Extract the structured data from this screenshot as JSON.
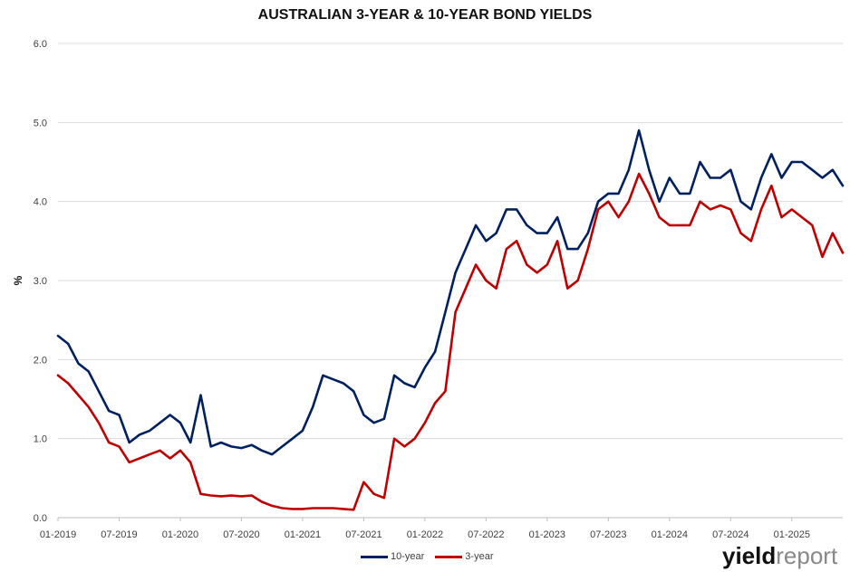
{
  "chart_data": {
    "type": "line",
    "title": "AUSTRALIAN 3-YEAR & 10-YEAR BOND YIELDS",
    "ylabel": "%",
    "ylim": [
      0,
      6
    ],
    "yticks": [
      "0.0",
      "1.0",
      "2.0",
      "3.0",
      "4.0",
      "5.0",
      "6.0"
    ],
    "xlim": [
      "2019-01",
      "2025-06"
    ],
    "xticks": [
      "01-2019",
      "07-2019",
      "01-2020",
      "07-2020",
      "01-2021",
      "07-2021",
      "01-2022",
      "07-2022",
      "01-2023",
      "07-2023",
      "01-2024",
      "07-2024",
      "01-2025"
    ],
    "grid": "horizontal",
    "legend_position": "bottom",
    "series": [
      {
        "name": "10-year",
        "color": "#002060",
        "x": [
          "2019-01",
          "2019-02",
          "2019-03",
          "2019-04",
          "2019-05",
          "2019-06",
          "2019-07",
          "2019-08",
          "2019-09",
          "2019-10",
          "2019-11",
          "2019-12",
          "2020-01",
          "2020-02",
          "2020-03",
          "2020-04",
          "2020-05",
          "2020-06",
          "2020-07",
          "2020-08",
          "2020-09",
          "2020-10",
          "2020-11",
          "2020-12",
          "2021-01",
          "2021-02",
          "2021-03",
          "2021-04",
          "2021-05",
          "2021-06",
          "2021-07",
          "2021-08",
          "2021-09",
          "2021-10",
          "2021-11",
          "2021-12",
          "2022-01",
          "2022-02",
          "2022-03",
          "2022-04",
          "2022-05",
          "2022-06",
          "2022-07",
          "2022-08",
          "2022-09",
          "2022-10",
          "2022-11",
          "2022-12",
          "2023-01",
          "2023-02",
          "2023-03",
          "2023-04",
          "2023-05",
          "2023-06",
          "2023-07",
          "2023-08",
          "2023-09",
          "2023-10",
          "2023-11",
          "2023-12",
          "2024-01",
          "2024-02",
          "2024-03",
          "2024-04",
          "2024-05",
          "2024-06",
          "2024-07",
          "2024-08",
          "2024-09",
          "2024-10",
          "2024-11",
          "2024-12",
          "2025-01",
          "2025-02",
          "2025-03",
          "2025-04",
          "2025-05",
          "2025-06"
        ],
        "y": [
          2.3,
          2.2,
          1.95,
          1.85,
          1.6,
          1.35,
          1.3,
          0.95,
          1.05,
          1.1,
          1.2,
          1.3,
          1.2,
          0.95,
          1.55,
          0.9,
          0.95,
          0.9,
          0.88,
          0.92,
          0.85,
          0.8,
          0.9,
          1.0,
          1.1,
          1.4,
          1.8,
          1.75,
          1.7,
          1.6,
          1.3,
          1.2,
          1.25,
          1.8,
          1.7,
          1.65,
          1.9,
          2.1,
          2.6,
          3.1,
          3.4,
          3.7,
          3.5,
          3.6,
          3.9,
          3.9,
          3.7,
          3.6,
          3.6,
          3.8,
          3.4,
          3.4,
          3.6,
          4.0,
          4.1,
          4.1,
          4.4,
          4.9,
          4.4,
          4.0,
          4.3,
          4.1,
          4.1,
          4.5,
          4.3,
          4.3,
          4.4,
          4.0,
          3.9,
          4.3,
          4.6,
          4.3,
          4.5,
          4.5,
          4.4,
          4.3,
          4.4,
          4.2
        ]
      },
      {
        "name": "3-year",
        "color": "#c00000",
        "x": [
          "2019-01",
          "2019-02",
          "2019-03",
          "2019-04",
          "2019-05",
          "2019-06",
          "2019-07",
          "2019-08",
          "2019-09",
          "2019-10",
          "2019-11",
          "2019-12",
          "2020-01",
          "2020-02",
          "2020-03",
          "2020-04",
          "2020-05",
          "2020-06",
          "2020-07",
          "2020-08",
          "2020-09",
          "2020-10",
          "2020-11",
          "2020-12",
          "2021-01",
          "2021-02",
          "2021-03",
          "2021-04",
          "2021-05",
          "2021-06",
          "2021-07",
          "2021-08",
          "2021-09",
          "2021-10",
          "2021-11",
          "2021-12",
          "2022-01",
          "2022-02",
          "2022-03",
          "2022-04",
          "2022-05",
          "2022-06",
          "2022-07",
          "2022-08",
          "2022-09",
          "2022-10",
          "2022-11",
          "2022-12",
          "2023-01",
          "2023-02",
          "2023-03",
          "2023-04",
          "2023-05",
          "2023-06",
          "2023-07",
          "2023-08",
          "2023-09",
          "2023-10",
          "2023-11",
          "2023-12",
          "2024-01",
          "2024-02",
          "2024-03",
          "2024-04",
          "2024-05",
          "2024-06",
          "2024-07",
          "2024-08",
          "2024-09",
          "2024-10",
          "2024-11",
          "2024-12",
          "2025-01",
          "2025-02",
          "2025-03",
          "2025-04",
          "2025-05",
          "2025-06"
        ],
        "y": [
          1.8,
          1.7,
          1.55,
          1.4,
          1.2,
          0.95,
          0.9,
          0.7,
          0.75,
          0.8,
          0.85,
          0.75,
          0.85,
          0.7,
          0.3,
          0.28,
          0.27,
          0.28,
          0.27,
          0.28,
          0.2,
          0.15,
          0.12,
          0.11,
          0.11,
          0.12,
          0.12,
          0.12,
          0.11,
          0.1,
          0.45,
          0.3,
          0.25,
          1.0,
          0.9,
          1.0,
          1.2,
          1.45,
          1.6,
          2.6,
          2.9,
          3.2,
          3.0,
          2.9,
          3.4,
          3.5,
          3.2,
          3.1,
          3.2,
          3.5,
          2.9,
          3.0,
          3.4,
          3.9,
          4.0,
          3.8,
          4.0,
          4.35,
          4.1,
          3.8,
          3.7,
          3.7,
          3.7,
          4.0,
          3.9,
          3.95,
          3.9,
          3.6,
          3.5,
          3.9,
          4.2,
          3.8,
          3.9,
          3.8,
          3.7,
          3.3,
          3.6,
          3.35
        ]
      }
    ]
  },
  "legend": {
    "items": [
      {
        "label": "10-year",
        "color": "#002060"
      },
      {
        "label": "3-year",
        "color": "#c00000"
      }
    ]
  },
  "logo": {
    "part1": "yield",
    "part2": "report"
  }
}
